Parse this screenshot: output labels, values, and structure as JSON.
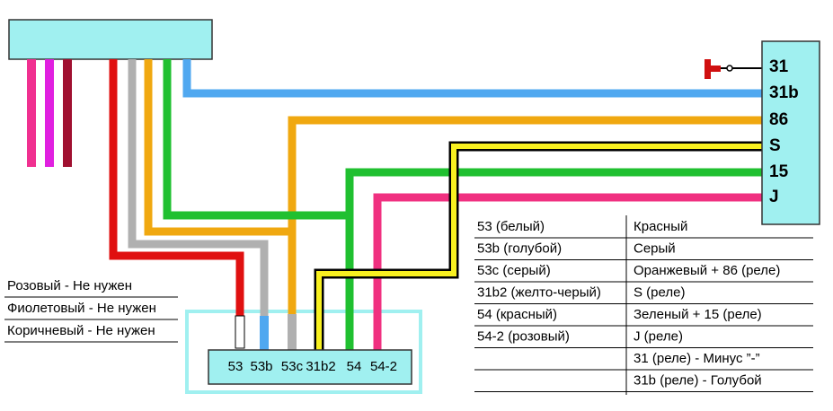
{
  "relay": {
    "pins": [
      "31",
      "31b",
      "86",
      "S",
      "15",
      "J"
    ]
  },
  "connector": {
    "pins": [
      "53",
      "53b",
      "53c",
      "31b2",
      "54",
      "54-2"
    ]
  },
  "notes": [
    "Розовый - Не нужен",
    "Фиолетовый - Не нужен",
    "Коричневый - Не нужен"
  ],
  "table": {
    "rows": [
      [
        "53 (белый)",
        "Красный"
      ],
      [
        "53b (голубой)",
        "Серый"
      ],
      [
        "53c (серый)",
        "Оранжевый + 86 (реле)"
      ],
      [
        "31b2 (желто-черый)",
        "S (реле)"
      ],
      [
        "54 (красный)",
        "Зеленый + 15 (реле)"
      ],
      [
        "54-2 (розовый)",
        "J (реле)"
      ],
      [
        null,
        "31 (реле) - Минус ”-”"
      ],
      [
        null,
        "31b (реле) - Голубой"
      ]
    ]
  }
}
